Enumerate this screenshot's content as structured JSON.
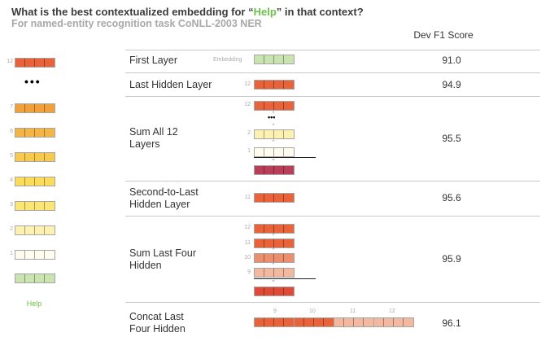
{
  "header": {
    "title_pre": "What is the best contextualized embedding for “",
    "title_word": "Help",
    "title_post": "” in that context?",
    "subtitle": "For named-entity recognition task CoNLL-2003 NER",
    "score_header": "Dev F1 Score"
  },
  "colors": {
    "highlight": "#6cc04a",
    "embedding": "#c9e3b1",
    "layer12": "#e8623a",
    "layer11": "#e8623a",
    "layer10": "#eb8f6f",
    "layer9": "#f3b8a0",
    "layer7": "#f0a13b",
    "layer6": "#f4b547",
    "layer5": "#f7c94f",
    "layer4": "#fadc5a",
    "layer3": "#fbe675",
    "layer2": "#fcf1b1",
    "layer1": "#fffcef",
    "sum_all": "#b83e5a",
    "sum_four": "#df4a36"
  },
  "stack": {
    "labels": {
      "l12": "12",
      "l7": "7",
      "l6": "6",
      "l5": "5",
      "l4": "4",
      "l3": "3",
      "l2": "2",
      "l1": "1"
    },
    "ellipsis": "•••",
    "word": "Help"
  },
  "rows": [
    {
      "label": "First Layer",
      "score": "91.0",
      "tag": "Embedding"
    },
    {
      "label": "Last Hidden Layer",
      "score": "94.9",
      "tag": "12"
    },
    {
      "label": "Sum All 12\nLayers",
      "score": "95.5",
      "tags": [
        "12",
        "2",
        "1"
      ],
      "dots": "•••"
    },
    {
      "label": "Second-to-Last\nHidden Layer",
      "score": "95.6",
      "tag": "11"
    },
    {
      "label": "Sum Last Four\nHidden",
      "score": "95.9",
      "tags": [
        "12",
        "11",
        "10",
        "9"
      ]
    },
    {
      "label": "Concat Last\nFour Hidden",
      "score": "96.1",
      "tags": [
        "9",
        "10",
        "11",
        "12"
      ]
    }
  ],
  "ops": {
    "plus": "+",
    "equals": "="
  }
}
